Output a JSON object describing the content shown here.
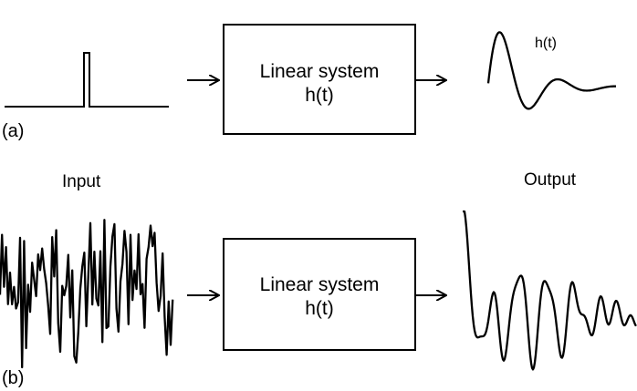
{
  "panel_a": {
    "label": "(a)",
    "system_line1": "Linear system",
    "system_line2": "h(t)",
    "response_label": "h(t)"
  },
  "panel_b": {
    "label": "(b)",
    "input_label": "Input",
    "output_label": "Output",
    "system_line1": "Linear system",
    "system_line2": "h(t)"
  }
}
